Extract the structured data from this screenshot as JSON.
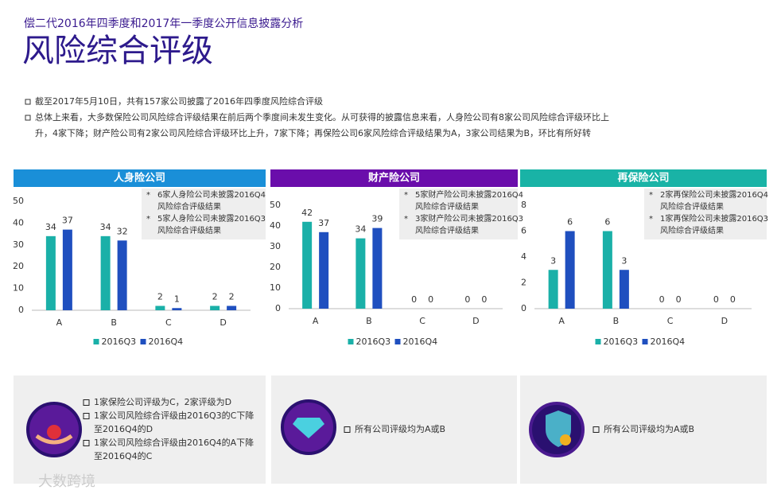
{
  "header": {
    "subtitle": "偿二代2016年四季度和2017年一季度公开信息披露分析",
    "title": "风险综合评级"
  },
  "bullets": [
    [
      "截至2017年5月10日，共有157家公司披露了2016年四季度风险综合评级"
    ],
    [
      "总体上来看，大多数保险公司风险综合评级结果在前后两个季度间未发生变化。从可获得的披露信息来看，人身险公司有8家公司风险综合评级环比上",
      "升，4家下降；财产险公司有2家公司风险综合评级环比上升，7家下降；再保险公司6家风险综合评级结果为A，3家公司结果为B，环比有所好转"
    ]
  ],
  "chart_data": [
    {
      "type": "bar",
      "title": "人身险公司",
      "header_color": "#1a8fd8",
      "categories": [
        "A",
        "B",
        "C",
        "D"
      ],
      "series": [
        {
          "name": "2016Q3",
          "color": "#1ab0a8",
          "values": [
            34,
            34,
            2,
            2
          ]
        },
        {
          "name": "2016Q4",
          "color": "#1f4fbf",
          "values": [
            37,
            32,
            1,
            2
          ]
        }
      ],
      "ylim": [
        0,
        50
      ],
      "yticks": [
        0,
        10,
        20,
        30,
        40,
        50
      ],
      "notes": [
        [
          "6家人身险公司未披露2016Q4",
          "风险综合评级结果"
        ],
        [
          "5家人身险公司未披露2016Q3",
          "风险综合评级结果"
        ]
      ]
    },
    {
      "type": "bar",
      "title": "财产险公司",
      "header_color": "#6a0dab",
      "categories": [
        "A",
        "B",
        "C",
        "D"
      ],
      "series": [
        {
          "name": "2016Q3",
          "color": "#1ab0a8",
          "values": [
            42,
            34,
            0,
            0
          ]
        },
        {
          "name": "2016Q4",
          "color": "#1f4fbf",
          "values": [
            37,
            39,
            0,
            0
          ]
        }
      ],
      "ylim": [
        0,
        50
      ],
      "yticks": [
        0,
        10,
        20,
        30,
        40,
        50
      ],
      "notes": [
        [
          "5家财产险公司未披露2016Q4",
          "风险综合评级结果"
        ],
        [
          "3家财产险公司未披露2016Q3",
          "风险综合评级结果"
        ]
      ]
    },
    {
      "type": "bar",
      "title": "再保险公司",
      "header_color": "#19b3a6",
      "categories": [
        "A",
        "B",
        "C",
        "D"
      ],
      "series": [
        {
          "name": "2016Q3",
          "color": "#1ab0a8",
          "values": [
            3,
            6,
            0,
            0
          ]
        },
        {
          "name": "2016Q4",
          "color": "#1f4fbf",
          "values": [
            6,
            3,
            0,
            0
          ]
        }
      ],
      "ylim": [
        0,
        8
      ],
      "yticks": [
        0,
        2,
        4,
        6,
        8
      ],
      "notes": [
        [
          "2家再保险公司未披露2016Q4",
          "风险综合评级结果"
        ],
        [
          "1家再保险公司未披露2016Q3",
          "风险综合评级结果"
        ]
      ]
    }
  ],
  "panels": [
    [
      [
        "1家保险公司评级为C，2家评级为D"
      ],
      [
        "1家公司风险综合评级由2016Q3的C下降",
        "至2016Q4的D"
      ],
      [
        "1家公司风险综合评级由2016Q4的A下降",
        "至2016Q4的C"
      ]
    ],
    [
      [
        "所有公司评级均为A或B"
      ]
    ],
    [
      [
        "所有公司评级均为A或B"
      ]
    ]
  ],
  "watermark": "大数跨境"
}
